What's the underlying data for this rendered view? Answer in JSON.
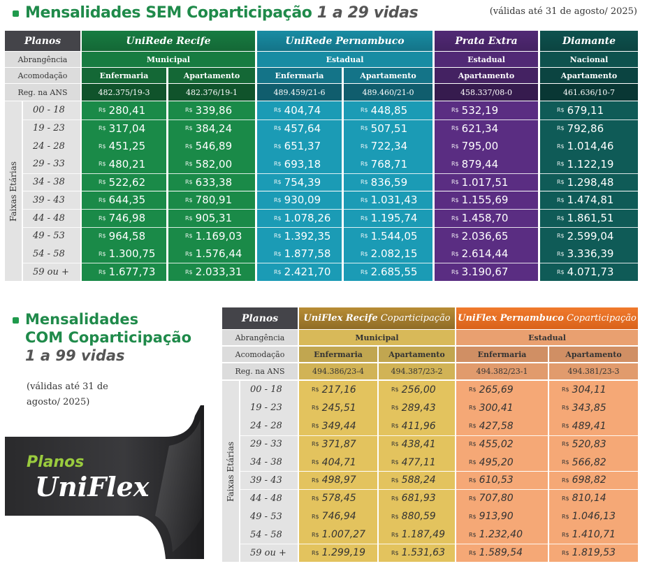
{
  "section1": {
    "title_bold": "Mensalidades SEM Coparticipação",
    "title_italic": "1 a 29 vidas",
    "validity": "(válidas até 31 de agosto/ 2025)"
  },
  "table1": {
    "labels": {
      "planos": "Planos",
      "abrangencia": "Abrangência",
      "acomodacao": "Acomodação",
      "reg_ans": "Reg. na ANS",
      "faixas": "Faixas Etárias"
    },
    "plans": [
      {
        "name": "UniRede Recife",
        "coverage": "Municipal",
        "color": "#1a8a48"
      },
      {
        "name": "UniRede Pernambuco",
        "coverage": "Estadual",
        "color": "#1b9bb5"
      },
      {
        "name": "Prata Extra",
        "coverage": "Estadual",
        "color": "#5a2d82"
      },
      {
        "name": "Diamante",
        "coverage": "Nacional",
        "color": "#0f5b57"
      }
    ],
    "columns": [
      {
        "acomodacao": "Enfermaria",
        "ans": "482.375/19-3"
      },
      {
        "acomodacao": "Apartamento",
        "ans": "482.376/19-1"
      },
      {
        "acomodacao": "Enfermaria",
        "ans": "489.459/21-6"
      },
      {
        "acomodacao": "Apartamento",
        "ans": "489.460/21-0"
      },
      {
        "acomodacao": "Apartamento",
        "ans": "458.337/08-0"
      },
      {
        "acomodacao": "Apartamento",
        "ans": "461.636/10-7"
      }
    ],
    "currency": "R$",
    "ages": [
      "00 - 18",
      "19 - 23",
      "24 - 28",
      "29 - 33",
      "34 - 38",
      "39 - 43",
      "44 - 48",
      "49 - 53",
      "54 - 58",
      "59 ou +"
    ],
    "prices": [
      [
        "280,41",
        "339,86",
        "404,74",
        "448,85",
        "532,19",
        "679,11"
      ],
      [
        "317,04",
        "384,24",
        "457,64",
        "507,51",
        "621,34",
        "792,86"
      ],
      [
        "451,25",
        "546,89",
        "651,37",
        "722,34",
        "795,00",
        "1.014,46"
      ],
      [
        "480,21",
        "582,00",
        "693,18",
        "768,71",
        "879,44",
        "1.122,19"
      ],
      [
        "522,62",
        "633,38",
        "754,39",
        "836,59",
        "1.017,51",
        "1.298,48"
      ],
      [
        "644,35",
        "780,91",
        "930,09",
        "1.031,43",
        "1.155,69",
        "1.474,81"
      ],
      [
        "746,98",
        "905,31",
        "1.078,26",
        "1.195,74",
        "1.458,70",
        "1.861,51"
      ],
      [
        "964,58",
        "1.169,03",
        "1.392,35",
        "1.544,05",
        "2.036,65",
        "2.599,04"
      ],
      [
        "1.300,75",
        "1.576,44",
        "1.877,58",
        "2.082,15",
        "2.614,44",
        "3.336,39"
      ],
      [
        "1.677,73",
        "2.033,31",
        "2.421,70",
        "2.685,55",
        "3.190,67",
        "4.071,73"
      ]
    ]
  },
  "section2": {
    "title_line1": "Mensalidades",
    "title_line2": "COM Coparticipação",
    "title_italic": "1 a 99 vidas",
    "validity": "(válidas até 31 de agosto/ 2025)",
    "banner_small": "Planos",
    "banner_big": "UniFlex"
  },
  "table2": {
    "labels": {
      "planos": "Planos",
      "abrangencia": "Abrangência",
      "acomodacao": "Acomodação",
      "reg_ans": "Reg. na ANS",
      "faixas": "Faixas Etárias"
    },
    "plans": [
      {
        "name_bold": "UniFlex Recife",
        "name_rest": " Coparticipação",
        "coverage": "Municipal",
        "color": "#e3c35e"
      },
      {
        "name_bold": "UniFlex Pernambuco",
        "name_rest": " Coparticipação",
        "coverage": "Estadual",
        "color": "#f5a876"
      }
    ],
    "columns": [
      {
        "acomodacao": "Enfermaria",
        "ans": "494.386/23-4"
      },
      {
        "acomodacao": "Apartamento",
        "ans": "494.387/23-2"
      },
      {
        "acomodacao": "Enfermaria",
        "ans": "494.382/23-1"
      },
      {
        "acomodacao": "Apartamento",
        "ans": "494.381/23-3"
      }
    ],
    "currency": "R$",
    "ages": [
      "00 - 18",
      "19 - 23",
      "24 - 28",
      "29 - 33",
      "34 - 38",
      "39 - 43",
      "44 - 48",
      "49 - 53",
      "54 - 58",
      "59 ou +"
    ],
    "prices": [
      [
        "217,16",
        "256,00",
        "265,69",
        "304,11"
      ],
      [
        "245,51",
        "289,43",
        "300,41",
        "343,85"
      ],
      [
        "349,44",
        "411,96",
        "427,58",
        "489,41"
      ],
      [
        "371,87",
        "438,41",
        "455,02",
        "520,83"
      ],
      [
        "404,71",
        "477,11",
        "495,20",
        "566,82"
      ],
      [
        "498,97",
        "588,24",
        "610,53",
        "698,82"
      ],
      [
        "578,45",
        "681,93",
        "707,80",
        "810,14"
      ],
      [
        "746,94",
        "880,59",
        "913,90",
        "1.046,13"
      ],
      [
        "1.007,27",
        "1.187,49",
        "1.232,40",
        "1.410,71"
      ],
      [
        "1.299,19",
        "1.531,63",
        "1.589,54",
        "1.819,53"
      ]
    ]
  }
}
